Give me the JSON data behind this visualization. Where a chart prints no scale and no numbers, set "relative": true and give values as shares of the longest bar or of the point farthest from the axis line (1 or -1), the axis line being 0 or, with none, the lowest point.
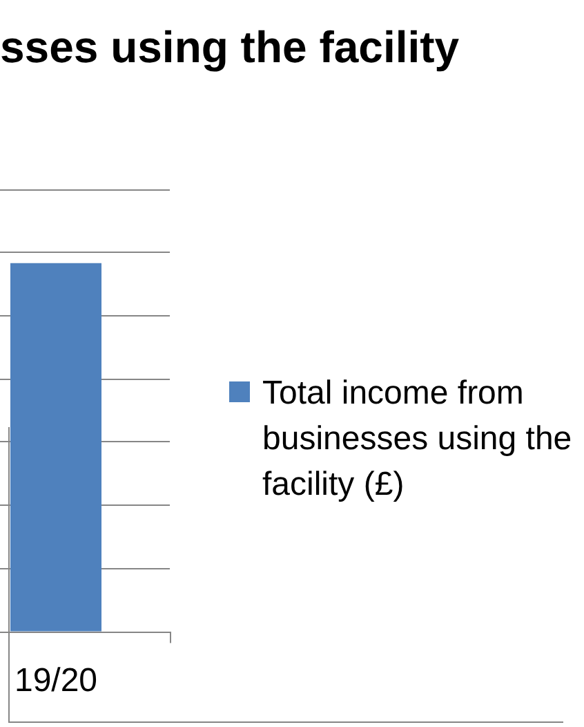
{
  "chart_data": {
    "type": "bar",
    "title": "sses using the facility",
    "categories": [
      "19/20"
    ],
    "series": [
      {
        "name": "Total income from businesses using the facility (£)",
        "color": "#4f81bd",
        "values": [
          1
        ]
      }
    ],
    "relative": true,
    "grid": "y",
    "legend": "right"
  }
}
